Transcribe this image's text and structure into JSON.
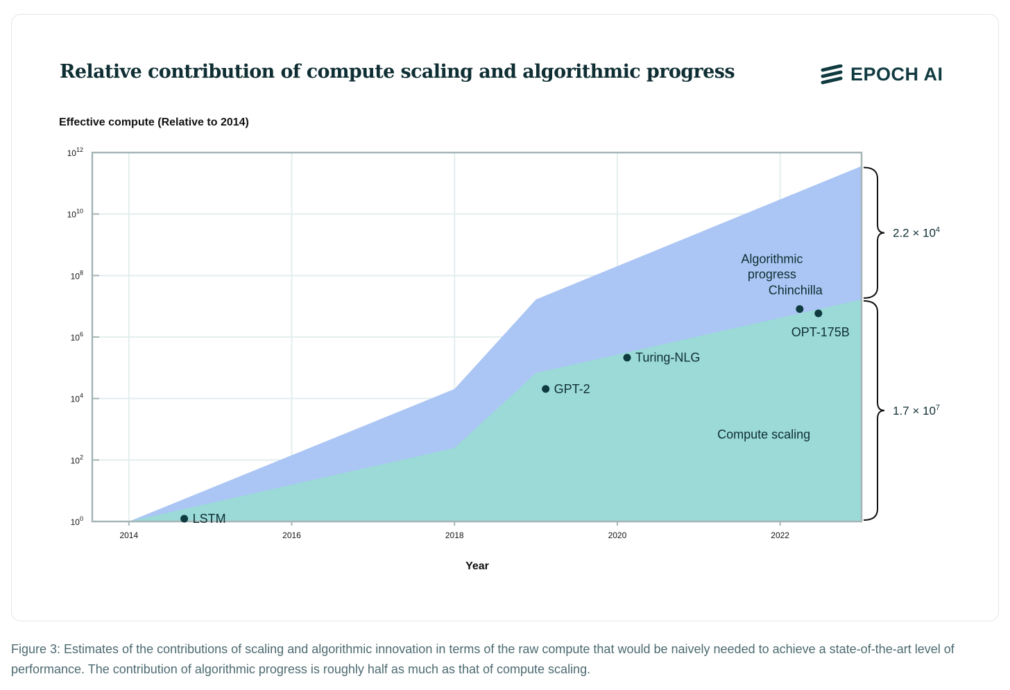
{
  "title": "Relative contribution of compute scaling and algorithmic progress",
  "logo": {
    "text": "EPOCH AI"
  },
  "caption": "Figure 3: Estimates of the contributions of scaling and algorithmic innovation in terms of the raw compute that would be naively needed to achieve a state-of-the-art level of performance. The contribution of algorithmic progress is roughly half as much as that of compute scaling.",
  "chart_data": {
    "type": "area",
    "ylabel": "Effective compute (Relative to 2014)",
    "xlabel": "Year",
    "yscale": "log10",
    "xlim": [
      2013.55,
      2023.0
    ],
    "ylim_log10": [
      0,
      12
    ],
    "x_ticks": [
      2014,
      2016,
      2018,
      2020,
      2022
    ],
    "y_ticks_log10": [
      0,
      2,
      4,
      6,
      8,
      10,
      12
    ],
    "grid": true,
    "series": [
      {
        "name": "Compute scaling",
        "color": "#9adbd6",
        "x": [
          2014,
          2018,
          2019,
          2023
        ],
        "log10_y": [
          0,
          2.39,
          4.83,
          7.22
        ]
      },
      {
        "name": "Algorithmic progress",
        "color": "#a6c3f3",
        "x": [
          2014,
          2018,
          2019,
          2023
        ],
        "log10_y": [
          0,
          4.31,
          7.22,
          11.56
        ]
      }
    ],
    "area_labels": [
      {
        "text_lines": [
          "Algorithmic",
          "progress"
        ],
        "x": 2021.9,
        "log10_y": 8.4
      },
      {
        "text_lines": [
          "Compute scaling"
        ],
        "x": 2021.8,
        "log10_y": 2.7
      }
    ],
    "points": [
      {
        "label": "LSTM",
        "x": 2014.68,
        "log10_y": 0.09,
        "label_pos": "right"
      },
      {
        "label": "GPT-2",
        "x": 2019.12,
        "log10_y": 4.31,
        "label_pos": "right"
      },
      {
        "label": "Turing-NLG",
        "x": 2020.12,
        "log10_y": 5.33,
        "label_pos": "right"
      },
      {
        "label": "Chinchilla",
        "x": 2022.24,
        "log10_y": 6.91,
        "label_pos": "above"
      },
      {
        "label": "OPT-175B",
        "x": 2022.47,
        "log10_y": 6.77,
        "label_pos": "below"
      }
    ],
    "brackets": [
      {
        "label_base": "2.2 × 10",
        "label_exp": "4",
        "from_log10": 7.22,
        "to_log10": 11.56
      },
      {
        "label_base": "1.7 × 10",
        "label_exp": "7",
        "from_log10": 0,
        "to_log10": 7.22
      }
    ]
  }
}
